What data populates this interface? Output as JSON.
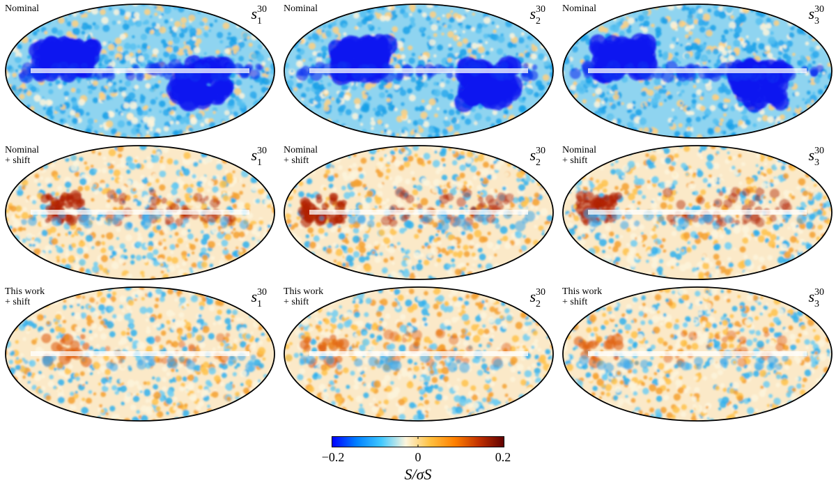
{
  "panels": [
    {
      "label": "Nominal",
      "symbol": "s",
      "sub": "1",
      "sup": "30",
      "style": "nominal",
      "hemi": 1
    },
    {
      "label": "Nominal",
      "symbol": "s",
      "sub": "2",
      "sup": "30",
      "style": "nominal",
      "hemi": 2
    },
    {
      "label": "Nominal",
      "symbol": "s",
      "sub": "3",
      "sup": "30",
      "style": "nominal",
      "hemi": 3
    },
    {
      "label": "Nominal\n+ shift",
      "symbol": "s",
      "sub": "1",
      "sup": "30",
      "style": "shift",
      "hemi": 1
    },
    {
      "label": "Nominal\n+ shift",
      "symbol": "s",
      "sub": "2",
      "sup": "30",
      "style": "shift",
      "hemi": 2
    },
    {
      "label": "Nominal\n+ shift",
      "symbol": "s",
      "sub": "3",
      "sup": "30",
      "style": "shift",
      "hemi": 3
    },
    {
      "label": "This work\n+ shift",
      "symbol": "s",
      "sub": "1",
      "sup": "30",
      "style": "work",
      "hemi": 1
    },
    {
      "label": "This work\n+ shift",
      "symbol": "s",
      "sub": "2",
      "sup": "30",
      "style": "work",
      "hemi": 2
    },
    {
      "label": "This work\n+ shift",
      "symbol": "s",
      "sub": "3",
      "sup": "30",
      "style": "work",
      "hemi": 3
    }
  ],
  "colorbar": {
    "ticks": [
      "−0.2",
      "0",
      "0.2"
    ],
    "label": "S/σS",
    "range": [
      -0.2,
      0.2
    ],
    "colors": [
      "#0000ff",
      "#0080ff",
      "#40c8ff",
      "#fdf5dc",
      "#ffc040",
      "#ff8000",
      "#c03000",
      "#600000"
    ]
  }
}
